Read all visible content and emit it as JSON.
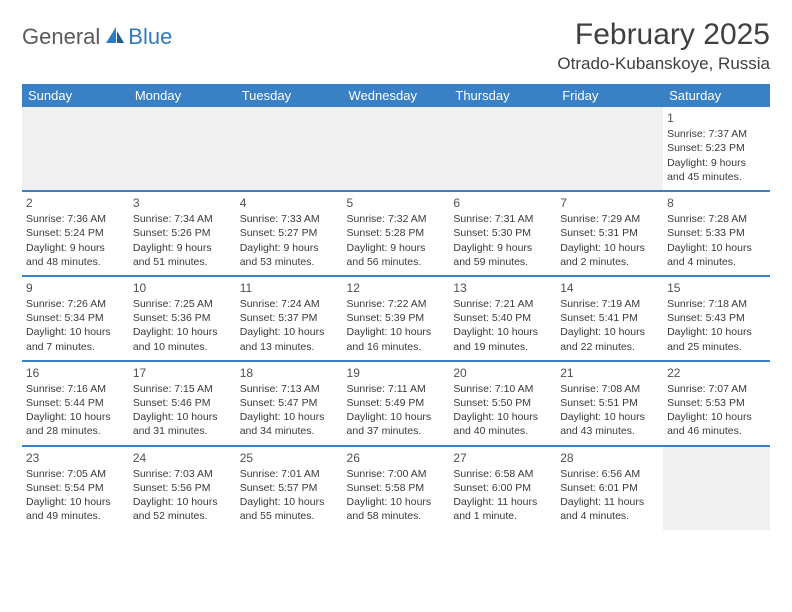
{
  "logo": {
    "part1": "General",
    "part2": "Blue"
  },
  "title": "February 2025",
  "location": "Otrado-Kubanskoye, Russia",
  "colors": {
    "header_bg": "#3a80c4",
    "header_text": "#ffffff",
    "brand_blue": "#2f7bbf",
    "text": "#3a3a3a",
    "empty_bg": "#f0f0f0"
  },
  "dayHeaders": [
    "Sunday",
    "Monday",
    "Tuesday",
    "Wednesday",
    "Thursday",
    "Friday",
    "Saturday"
  ],
  "weeks": [
    [
      null,
      null,
      null,
      null,
      null,
      null,
      {
        "n": "1",
        "sr": "7:37 AM",
        "ss": "5:23 PM",
        "dl": "9 hours and 45 minutes."
      }
    ],
    [
      {
        "n": "2",
        "sr": "7:36 AM",
        "ss": "5:24 PM",
        "dl": "9 hours and 48 minutes."
      },
      {
        "n": "3",
        "sr": "7:34 AM",
        "ss": "5:26 PM",
        "dl": "9 hours and 51 minutes."
      },
      {
        "n": "4",
        "sr": "7:33 AM",
        "ss": "5:27 PM",
        "dl": "9 hours and 53 minutes."
      },
      {
        "n": "5",
        "sr": "7:32 AM",
        "ss": "5:28 PM",
        "dl": "9 hours and 56 minutes."
      },
      {
        "n": "6",
        "sr": "7:31 AM",
        "ss": "5:30 PM",
        "dl": "9 hours and 59 minutes."
      },
      {
        "n": "7",
        "sr": "7:29 AM",
        "ss": "5:31 PM",
        "dl": "10 hours and 2 minutes."
      },
      {
        "n": "8",
        "sr": "7:28 AM",
        "ss": "5:33 PM",
        "dl": "10 hours and 4 minutes."
      }
    ],
    [
      {
        "n": "9",
        "sr": "7:26 AM",
        "ss": "5:34 PM",
        "dl": "10 hours and 7 minutes."
      },
      {
        "n": "10",
        "sr": "7:25 AM",
        "ss": "5:36 PM",
        "dl": "10 hours and 10 minutes."
      },
      {
        "n": "11",
        "sr": "7:24 AM",
        "ss": "5:37 PM",
        "dl": "10 hours and 13 minutes."
      },
      {
        "n": "12",
        "sr": "7:22 AM",
        "ss": "5:39 PM",
        "dl": "10 hours and 16 minutes."
      },
      {
        "n": "13",
        "sr": "7:21 AM",
        "ss": "5:40 PM",
        "dl": "10 hours and 19 minutes."
      },
      {
        "n": "14",
        "sr": "7:19 AM",
        "ss": "5:41 PM",
        "dl": "10 hours and 22 minutes."
      },
      {
        "n": "15",
        "sr": "7:18 AM",
        "ss": "5:43 PM",
        "dl": "10 hours and 25 minutes."
      }
    ],
    [
      {
        "n": "16",
        "sr": "7:16 AM",
        "ss": "5:44 PM",
        "dl": "10 hours and 28 minutes."
      },
      {
        "n": "17",
        "sr": "7:15 AM",
        "ss": "5:46 PM",
        "dl": "10 hours and 31 minutes."
      },
      {
        "n": "18",
        "sr": "7:13 AM",
        "ss": "5:47 PM",
        "dl": "10 hours and 34 minutes."
      },
      {
        "n": "19",
        "sr": "7:11 AM",
        "ss": "5:49 PM",
        "dl": "10 hours and 37 minutes."
      },
      {
        "n": "20",
        "sr": "7:10 AM",
        "ss": "5:50 PM",
        "dl": "10 hours and 40 minutes."
      },
      {
        "n": "21",
        "sr": "7:08 AM",
        "ss": "5:51 PM",
        "dl": "10 hours and 43 minutes."
      },
      {
        "n": "22",
        "sr": "7:07 AM",
        "ss": "5:53 PM",
        "dl": "10 hours and 46 minutes."
      }
    ],
    [
      {
        "n": "23",
        "sr": "7:05 AM",
        "ss": "5:54 PM",
        "dl": "10 hours and 49 minutes."
      },
      {
        "n": "24",
        "sr": "7:03 AM",
        "ss": "5:56 PM",
        "dl": "10 hours and 52 minutes."
      },
      {
        "n": "25",
        "sr": "7:01 AM",
        "ss": "5:57 PM",
        "dl": "10 hours and 55 minutes."
      },
      {
        "n": "26",
        "sr": "7:00 AM",
        "ss": "5:58 PM",
        "dl": "10 hours and 58 minutes."
      },
      {
        "n": "27",
        "sr": "6:58 AM",
        "ss": "6:00 PM",
        "dl": "11 hours and 1 minute."
      },
      {
        "n": "28",
        "sr": "6:56 AM",
        "ss": "6:01 PM",
        "dl": "11 hours and 4 minutes."
      },
      null
    ]
  ],
  "labels": {
    "sunrise": "Sunrise: ",
    "sunset": "Sunset: ",
    "daylight": "Daylight: "
  }
}
